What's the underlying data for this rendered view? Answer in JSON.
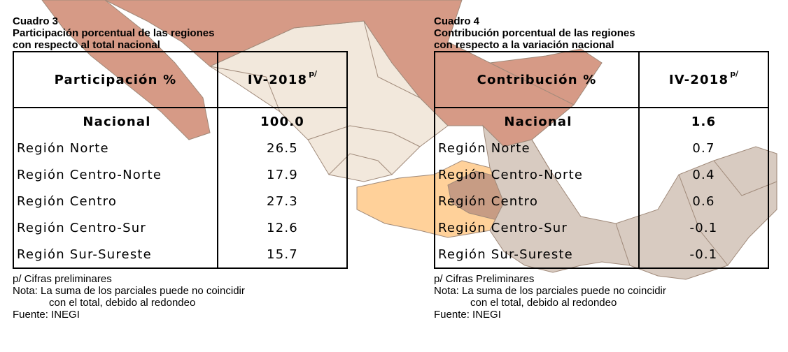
{
  "colors": {
    "north_region": "#d69a86",
    "center_north_region": "#f2e8dc",
    "center_region": "#ffd19a",
    "center_dark": "#c79c84",
    "south_region": "#d8cbc1",
    "state_border": "#a08a7a"
  },
  "table3": {
    "caption_line1": "Cuadro 3",
    "caption_line2": "Participación porcentual de las regiones",
    "caption_line3": "con respecto al total nacional",
    "header_left": "Participación %",
    "header_right": "IV-2018",
    "header_sup": "p/",
    "rows": [
      {
        "label": "Nacional",
        "value": "100.0"
      },
      {
        "label": "Región Norte",
        "value": "26.5"
      },
      {
        "label": "Región Centro-Norte",
        "value": "17.9"
      },
      {
        "label": "Región Centro",
        "value": "27.3"
      },
      {
        "label": "Región Centro-Sur",
        "value": "12.6"
      },
      {
        "label": "Región Sur-Sureste",
        "value": "15.7"
      }
    ],
    "note1": "p/ Cifras preliminares",
    "note2": "Nota: La suma de los parciales puede no coincidir",
    "note3": "con el total, debido al redondeo",
    "note4": "Fuente: INEGI"
  },
  "table4": {
    "caption_line1": "Cuadro 4",
    "caption_line2": "Contribución porcentual de las regiones",
    "caption_line3": "con respecto a la variación nacional",
    "header_left": "Contribución %",
    "header_right": "IV-2018",
    "header_sup": "p/",
    "rows": [
      {
        "label": "Nacional",
        "value": "1.6"
      },
      {
        "label": "Región Norte",
        "value": "0.7"
      },
      {
        "label": "Región Centro-Norte",
        "value": "0.4"
      },
      {
        "label": "Región Centro",
        "value": "0.6"
      },
      {
        "label": "Región Centro-Sur",
        "value": "-0.1"
      },
      {
        "label": "Región Sur-Sureste",
        "value": "-0.1"
      }
    ],
    "note1": "p/ Cifras Preliminares",
    "note2": "Nota: La suma de los parciales puede no coincidir",
    "note3": "con el total, debido al redondeo",
    "note4": "Fuente: INEGI"
  }
}
